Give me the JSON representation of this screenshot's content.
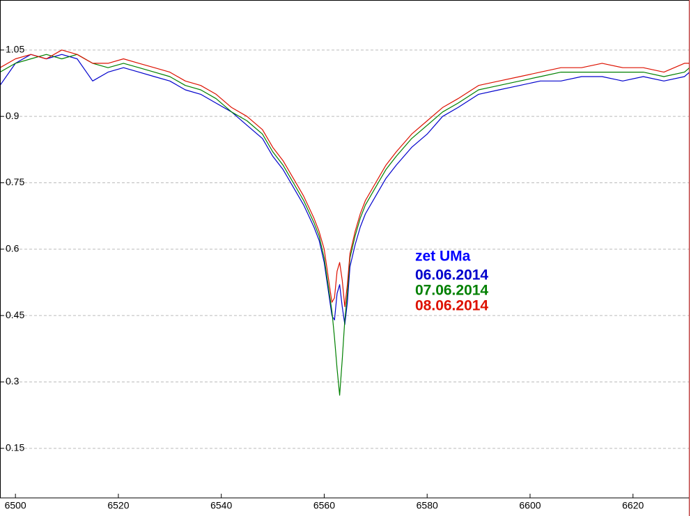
{
  "chart_data": {
    "type": "line",
    "title": "zet UMa",
    "title_color": "#0000ff",
    "x": [
      6497,
      6500,
      6503,
      6506,
      6509,
      6512,
      6515,
      6518,
      6521,
      6524,
      6527,
      6530,
      6533,
      6536,
      6539,
      6542,
      6545,
      6548,
      6550,
      6552,
      6554,
      6556,
      6558,
      6559,
      6560,
      6561,
      6561.5,
      6562,
      6562.5,
      6563,
      6563.5,
      6564,
      6564.5,
      6565,
      6566,
      6567,
      6568,
      6570,
      6572,
      6574,
      6577,
      6580,
      6583,
      6586,
      6590,
      6594,
      6598,
      6602,
      6606,
      6610,
      6614,
      6618,
      6622,
      6626,
      6630,
      6631
    ],
    "series": [
      {
        "name": "06.06.2014",
        "color": "#0000cc",
        "values": [
          0.97,
          1.02,
          1.04,
          1.03,
          1.04,
          1.03,
          0.98,
          1.0,
          1.01,
          1.0,
          0.99,
          0.98,
          0.96,
          0.95,
          0.93,
          0.91,
          0.88,
          0.85,
          0.81,
          0.78,
          0.74,
          0.7,
          0.65,
          0.62,
          0.57,
          0.49,
          0.45,
          0.44,
          0.5,
          0.52,
          0.47,
          0.43,
          0.48,
          0.56,
          0.61,
          0.65,
          0.68,
          0.72,
          0.76,
          0.79,
          0.83,
          0.86,
          0.9,
          0.92,
          0.95,
          0.96,
          0.97,
          0.98,
          0.98,
          0.99,
          0.99,
          0.98,
          0.99,
          0.98,
          0.99,
          1.0
        ]
      },
      {
        "name": "07.06.2014",
        "color": "#008000",
        "values": [
          1.0,
          1.02,
          1.03,
          1.04,
          1.03,
          1.04,
          1.02,
          1.01,
          1.02,
          1.01,
          1.0,
          0.99,
          0.97,
          0.96,
          0.94,
          0.91,
          0.89,
          0.86,
          0.82,
          0.79,
          0.75,
          0.71,
          0.66,
          0.63,
          0.58,
          0.5,
          0.46,
          0.4,
          0.33,
          0.27,
          0.35,
          0.44,
          0.5,
          0.58,
          0.63,
          0.67,
          0.7,
          0.74,
          0.78,
          0.81,
          0.85,
          0.88,
          0.91,
          0.93,
          0.96,
          0.97,
          0.98,
          0.99,
          1.0,
          1.0,
          1.0,
          1.0,
          1.0,
          0.99,
          1.0,
          1.01
        ]
      },
      {
        "name": "08.06.2014",
        "color": "#dd1100",
        "values": [
          1.01,
          1.03,
          1.04,
          1.03,
          1.05,
          1.04,
          1.02,
          1.02,
          1.03,
          1.02,
          1.01,
          1.0,
          0.98,
          0.97,
          0.95,
          0.92,
          0.9,
          0.87,
          0.83,
          0.8,
          0.76,
          0.72,
          0.67,
          0.64,
          0.6,
          0.52,
          0.48,
          0.49,
          0.55,
          0.57,
          0.53,
          0.47,
          0.52,
          0.59,
          0.64,
          0.68,
          0.71,
          0.75,
          0.79,
          0.82,
          0.86,
          0.89,
          0.92,
          0.94,
          0.97,
          0.98,
          0.99,
          1.0,
          1.01,
          1.01,
          1.02,
          1.01,
          1.01,
          1.0,
          1.02,
          1.02
        ]
      }
    ],
    "xlim": [
      6497,
      6631
    ],
    "ylim": [
      0.038,
      1.163
    ],
    "xticks": [
      6500,
      6520,
      6540,
      6560,
      6580,
      6600,
      6620
    ],
    "yticks": [
      0.15,
      0.3,
      0.45,
      0.6,
      0.75,
      0.9,
      1.05
    ],
    "grid": true
  }
}
